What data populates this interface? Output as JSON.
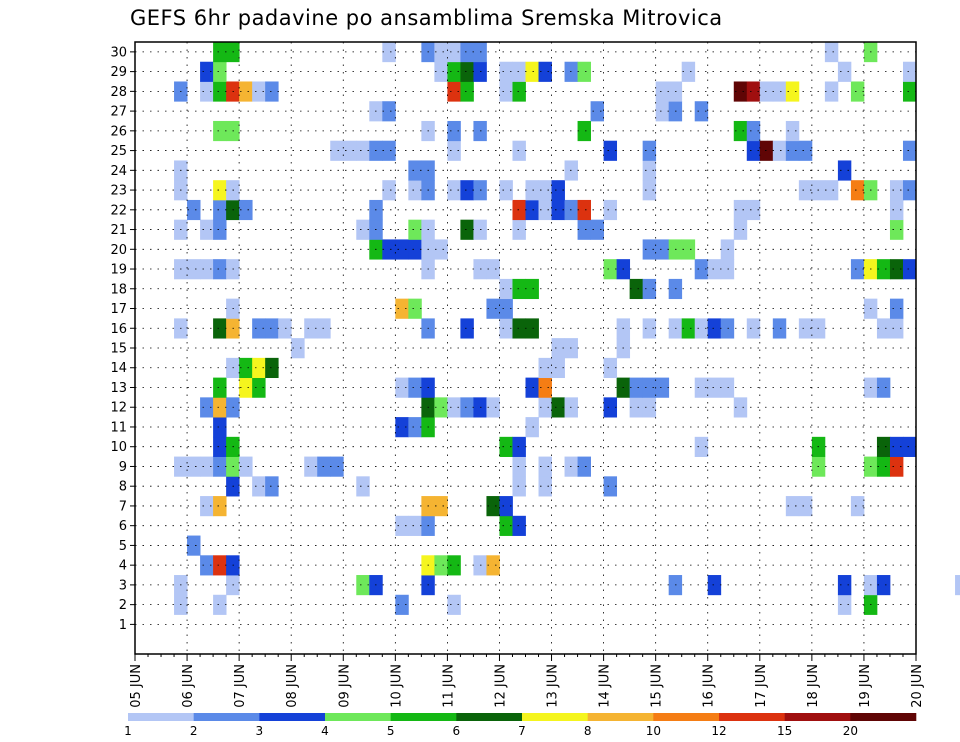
{
  "chart_data": {
    "type": "heatmap",
    "title": "GEFS 6hr padavine po ansamblima Sremska Mitrovica",
    "x_tick_labels": [
      "05 JUN",
      "06 JUN",
      "07 JUN",
      "08 JUN",
      "09 JUN",
      "10 JUN",
      "11 JUN",
      "12 JUN",
      "13 JUN",
      "14 JUN",
      "15 JUN",
      "16 JUN",
      "17 JUN",
      "18 JUN",
      "19 JUN",
      "20 JUN"
    ],
    "y_tick_labels": [
      "1",
      "2",
      "3",
      "4",
      "5",
      "6",
      "7",
      "8",
      "9",
      "10",
      "11",
      "12",
      "13",
      "14",
      "15",
      "16",
      "17",
      "18",
      "19",
      "20",
      "21",
      "22",
      "23",
      "24",
      "25",
      "26",
      "27",
      "28",
      "29",
      "30"
    ],
    "xlim_days": [
      0,
      15
    ],
    "steps_per_day": 4,
    "ensemble_members": 30,
    "grid": true,
    "colorbar": {
      "labels": [
        "1",
        "2",
        "3",
        "4",
        "5",
        "6",
        "7",
        "8",
        "10",
        "12",
        "15",
        "20"
      ],
      "colors": [
        "#b3c6f5",
        "#5b8ae8",
        "#1441d8",
        "#6ee85a",
        "#14b814",
        "#0a640a",
        "#f5f51e",
        "#f5b432",
        "#f57d14",
        "#dc320f",
        "#a00f0f",
        "#600505"
      ]
    },
    "cells": [
      [
        0,
        20.25,
        1
      ],
      [
        0,
        21.0,
        3
      ],
      [
        1,
        19.5,
        1
      ],
      [
        1,
        21.25,
        1
      ],
      [
        1,
        27.25,
        1
      ],
      [
        1,
        28.0,
        1
      ],
      [
        1,
        28.25,
        1
      ],
      [
        1,
        29.25,
        1
      ],
      [
        1,
        29.5,
        4
      ],
      [
        1,
        30.0,
        1
      ],
      [
        2,
        1.0,
        1
      ],
      [
        2,
        1.75,
        1
      ],
      [
        2,
        5.25,
        2
      ],
      [
        2,
        6.25,
        1
      ],
      [
        2,
        13.75,
        1
      ],
      [
        2,
        14.25,
        5
      ],
      [
        2,
        19.25,
        6
      ],
      [
        2,
        30.0,
        5
      ],
      [
        3,
        1.0,
        1
      ],
      [
        3,
        2.0,
        1
      ],
      [
        3,
        4.5,
        4
      ],
      [
        3,
        4.75,
        3
      ],
      [
        3,
        5.75,
        3
      ],
      [
        3,
        10.5,
        2
      ],
      [
        3,
        11.25,
        3
      ],
      [
        3,
        13.75,
        3
      ],
      [
        3,
        14.25,
        1
      ],
      [
        3,
        14.5,
        3
      ],
      [
        3,
        16.0,
        1
      ],
      [
        3,
        16.25,
        1
      ],
      [
        3,
        16.75,
        1
      ],
      [
        3,
        17.0,
        9
      ],
      [
        3,
        17.25,
        5
      ],
      [
        3,
        17.5,
        9
      ],
      [
        3,
        18.5,
        1
      ],
      [
        4,
        1.5,
        2
      ],
      [
        4,
        1.75,
        10
      ],
      [
        4,
        2.0,
        3
      ],
      [
        4,
        5.75,
        7
      ],
      [
        4,
        6.0,
        4
      ],
      [
        4,
        6.25,
        5
      ],
      [
        4,
        6.75,
        1
      ],
      [
        4,
        7.0,
        8
      ],
      [
        4,
        16.75,
        1
      ],
      [
        4,
        17.0,
        1
      ],
      [
        5,
        1.25,
        2
      ],
      [
        6,
        5.25,
        1
      ],
      [
        6,
        5.5,
        1
      ],
      [
        6,
        5.75,
        2
      ],
      [
        6,
        7.25,
        5
      ],
      [
        6,
        7.5,
        3
      ],
      [
        7,
        1.5,
        1
      ],
      [
        7,
        1.75,
        8
      ],
      [
        7,
        5.75,
        8
      ],
      [
        7,
        6.0,
        8
      ],
      [
        7,
        7.0,
        6
      ],
      [
        7,
        7.25,
        3
      ],
      [
        7,
        12.75,
        1
      ],
      [
        7,
        13.0,
        1
      ],
      [
        7,
        14.0,
        1
      ],
      [
        8,
        2.0,
        3
      ],
      [
        8,
        2.5,
        1
      ],
      [
        8,
        2.75,
        2
      ],
      [
        8,
        4.5,
        1
      ],
      [
        8,
        7.5,
        1
      ],
      [
        8,
        8.0,
        1
      ],
      [
        8,
        9.25,
        2
      ],
      [
        9,
        1.0,
        1
      ],
      [
        9,
        1.25,
        1
      ],
      [
        9,
        1.5,
        1
      ],
      [
        9,
        1.75,
        2
      ],
      [
        9,
        2.0,
        4
      ],
      [
        9,
        2.25,
        1
      ],
      [
        9,
        3.5,
        1
      ],
      [
        9,
        3.75,
        2
      ],
      [
        9,
        4.0,
        2
      ],
      [
        9,
        7.5,
        1
      ],
      [
        9,
        8.0,
        1
      ],
      [
        9,
        8.5,
        1
      ],
      [
        9,
        8.75,
        2
      ],
      [
        9,
        13.25,
        4
      ],
      [
        9,
        14.25,
        4
      ],
      [
        9,
        14.5,
        5
      ],
      [
        9,
        14.75,
        10
      ],
      [
        10,
        1.75,
        3
      ],
      [
        10,
        2.0,
        5
      ],
      [
        10,
        7.25,
        5
      ],
      [
        10,
        7.5,
        3
      ],
      [
        10,
        11.0,
        1
      ],
      [
        10,
        13.25,
        5
      ],
      [
        10,
        14.5,
        6
      ],
      [
        10,
        14.75,
        3
      ],
      [
        10,
        15.0,
        3
      ],
      [
        11,
        1.75,
        3
      ],
      [
        11,
        5.25,
        3
      ],
      [
        11,
        5.5,
        2
      ],
      [
        11,
        5.75,
        5
      ],
      [
        11,
        7.75,
        1
      ],
      [
        12,
        1.5,
        2
      ],
      [
        12,
        1.75,
        8
      ],
      [
        12,
        2.0,
        2
      ],
      [
        12,
        5.75,
        6
      ],
      [
        12,
        6.0,
        4
      ],
      [
        12,
        6.25,
        1
      ],
      [
        12,
        6.5,
        2
      ],
      [
        12,
        6.75,
        3
      ],
      [
        12,
        7.0,
        1
      ],
      [
        12,
        8.0,
        1
      ],
      [
        12,
        8.25,
        6
      ],
      [
        12,
        8.5,
        1
      ],
      [
        12,
        9.25,
        3
      ],
      [
        12,
        9.75,
        1
      ],
      [
        12,
        10.0,
        1
      ],
      [
        12,
        11.75,
        1
      ],
      [
        13,
        1.75,
        5
      ],
      [
        13,
        2.25,
        7
      ],
      [
        13,
        2.5,
        5
      ],
      [
        13,
        5.25,
        1
      ],
      [
        13,
        5.5,
        2
      ],
      [
        13,
        5.75,
        3
      ],
      [
        13,
        7.75,
        3
      ],
      [
        13,
        8.0,
        9
      ],
      [
        13,
        9.5,
        6
      ],
      [
        13,
        9.75,
        2
      ],
      [
        13,
        10.0,
        2
      ],
      [
        13,
        10.25,
        2
      ],
      [
        13,
        11.0,
        1
      ],
      [
        13,
        11.25,
        1
      ],
      [
        13,
        11.5,
        1
      ],
      [
        13,
        14.25,
        1
      ],
      [
        13,
        14.5,
        2
      ],
      [
        14,
        2.0,
        1
      ],
      [
        14,
        2.25,
        5
      ],
      [
        14,
        2.5,
        7
      ],
      [
        14,
        2.75,
        6
      ],
      [
        14,
        8.0,
        1
      ],
      [
        14,
        8.25,
        1
      ],
      [
        14,
        9.25,
        1
      ],
      [
        15,
        3.25,
        1
      ],
      [
        15,
        8.25,
        1
      ],
      [
        15,
        8.5,
        1
      ],
      [
        15,
        9.5,
        1
      ],
      [
        16,
        1.0,
        1
      ],
      [
        16,
        1.75,
        6
      ],
      [
        16,
        2.0,
        8
      ],
      [
        16,
        2.5,
        2
      ],
      [
        16,
        2.75,
        2
      ],
      [
        16,
        3.0,
        1
      ],
      [
        16,
        3.5,
        1
      ],
      [
        16,
        3.75,
        1
      ],
      [
        16,
        5.75,
        2
      ],
      [
        16,
        6.5,
        3
      ],
      [
        16,
        7.25,
        1
      ],
      [
        16,
        7.5,
        6
      ],
      [
        16,
        7.75,
        6
      ],
      [
        16,
        9.5,
        1
      ],
      [
        16,
        10.0,
        1
      ],
      [
        16,
        10.5,
        1
      ],
      [
        16,
        10.75,
        5
      ],
      [
        16,
        11.0,
        1
      ],
      [
        16,
        11.25,
        3
      ],
      [
        16,
        11.5,
        2
      ],
      [
        16,
        12.0,
        1
      ],
      [
        16,
        12.5,
        2
      ],
      [
        16,
        13.0,
        1
      ],
      [
        16,
        13.25,
        1
      ],
      [
        16,
        14.5,
        1
      ],
      [
        16,
        14.75,
        1
      ],
      [
        17,
        2.0,
        1
      ],
      [
        17,
        5.25,
        8
      ],
      [
        17,
        5.5,
        4
      ],
      [
        17,
        7.0,
        2
      ],
      [
        17,
        7.25,
        2
      ],
      [
        17,
        14.25,
        1
      ],
      [
        17,
        14.75,
        2
      ],
      [
        18,
        7.25,
        1
      ],
      [
        18,
        7.5,
        5
      ],
      [
        18,
        7.75,
        5
      ],
      [
        18,
        9.75,
        6
      ],
      [
        18,
        10.0,
        2
      ],
      [
        18,
        10.5,
        2
      ],
      [
        19,
        1.0,
        1
      ],
      [
        19,
        1.25,
        1
      ],
      [
        19,
        1.5,
        1
      ],
      [
        19,
        1.75,
        2
      ],
      [
        19,
        2.0,
        1
      ],
      [
        19,
        5.75,
        1
      ],
      [
        19,
        6.75,
        1
      ],
      [
        19,
        7.0,
        1
      ],
      [
        19,
        9.25,
        4
      ],
      [
        19,
        9.5,
        3
      ],
      [
        19,
        11.0,
        2
      ],
      [
        19,
        11.25,
        1
      ],
      [
        19,
        11.5,
        1
      ],
      [
        19,
        14.0,
        2
      ],
      [
        19,
        14.25,
        7
      ],
      [
        19,
        14.5,
        5
      ],
      [
        19,
        14.75,
        6
      ],
      [
        19,
        15.0,
        3
      ],
      [
        20,
        4.75,
        5
      ],
      [
        20,
        5.0,
        3
      ],
      [
        20,
        5.25,
        3
      ],
      [
        20,
        5.5,
        3
      ],
      [
        20,
        5.75,
        1
      ],
      [
        20,
        6.0,
        1
      ],
      [
        20,
        10.0,
        2
      ],
      [
        20,
        10.25,
        2
      ],
      [
        20,
        10.5,
        4
      ],
      [
        20,
        10.75,
        4
      ],
      [
        20,
        11.5,
        1
      ],
      [
        21,
        1.0,
        1
      ],
      [
        21,
        1.5,
        1
      ],
      [
        21,
        1.75,
        2
      ],
      [
        21,
        4.5,
        1
      ],
      [
        21,
        4.75,
        2
      ],
      [
        21,
        5.5,
        4
      ],
      [
        21,
        5.75,
        1
      ],
      [
        21,
        6.5,
        6
      ],
      [
        21,
        6.75,
        1
      ],
      [
        21,
        7.5,
        1
      ],
      [
        21,
        8.75,
        2
      ],
      [
        21,
        9.0,
        2
      ],
      [
        21,
        11.75,
        1
      ],
      [
        21,
        14.75,
        4
      ],
      [
        22,
        1.25,
        2
      ],
      [
        22,
        1.75,
        2
      ],
      [
        22,
        2.0,
        6
      ],
      [
        22,
        2.25,
        2
      ],
      [
        22,
        4.75,
        2
      ],
      [
        22,
        7.5,
        10
      ],
      [
        22,
        7.75,
        3
      ],
      [
        22,
        8.0,
        1
      ],
      [
        22,
        8.25,
        3
      ],
      [
        22,
        8.5,
        2
      ],
      [
        22,
        8.75,
        10
      ],
      [
        22,
        9.25,
        1
      ],
      [
        22,
        11.75,
        1
      ],
      [
        22,
        12.0,
        1
      ],
      [
        22,
        14.75,
        1
      ],
      [
        23,
        1.0,
        1
      ],
      [
        23,
        1.75,
        7
      ],
      [
        23,
        2.0,
        1
      ],
      [
        23,
        5.0,
        1
      ],
      [
        23,
        5.5,
        1
      ],
      [
        23,
        5.75,
        2
      ],
      [
        23,
        6.25,
        1
      ],
      [
        23,
        6.5,
        3
      ],
      [
        23,
        6.75,
        2
      ],
      [
        23,
        7.25,
        1
      ],
      [
        23,
        7.75,
        1
      ],
      [
        23,
        8.0,
        1
      ],
      [
        23,
        8.25,
        3
      ],
      [
        23,
        10.0,
        1
      ],
      [
        23,
        13.0,
        1
      ],
      [
        23,
        13.25,
        1
      ],
      [
        23,
        13.5,
        1
      ],
      [
        23,
        14.0,
        9
      ],
      [
        23,
        14.25,
        4
      ],
      [
        23,
        14.75,
        1
      ],
      [
        23,
        15.0,
        2
      ],
      [
        24,
        1.0,
        1
      ],
      [
        24,
        5.5,
        2
      ],
      [
        24,
        5.75,
        2
      ],
      [
        24,
        8.5,
        1
      ],
      [
        24,
        10.0,
        1
      ],
      [
        24,
        13.75,
        3
      ],
      [
        25,
        4.0,
        1
      ],
      [
        25,
        4.25,
        1
      ],
      [
        25,
        4.5,
        1
      ],
      [
        25,
        4.75,
        2
      ],
      [
        25,
        5.0,
        2
      ],
      [
        25,
        6.25,
        1
      ],
      [
        25,
        7.5,
        1
      ],
      [
        25,
        9.25,
        3
      ],
      [
        25,
        10.0,
        2
      ],
      [
        25,
        12.0,
        3
      ],
      [
        25,
        12.25,
        12
      ],
      [
        25,
        12.5,
        1
      ],
      [
        25,
        12.75,
        2
      ],
      [
        25,
        13.0,
        2
      ],
      [
        25,
        15.0,
        2
      ],
      [
        26,
        1.75,
        4
      ],
      [
        26,
        2.0,
        4
      ],
      [
        26,
        5.75,
        1
      ],
      [
        26,
        6.25,
        2
      ],
      [
        26,
        6.75,
        2
      ],
      [
        26,
        8.75,
        5
      ],
      [
        26,
        11.75,
        5
      ],
      [
        26,
        12.0,
        2
      ],
      [
        26,
        12.75,
        1
      ],
      [
        27,
        4.75,
        1
      ],
      [
        27,
        5.0,
        2
      ],
      [
        27,
        9.0,
        2
      ],
      [
        27,
        10.25,
        1
      ],
      [
        27,
        10.5,
        2
      ],
      [
        27,
        11.0,
        2
      ],
      [
        28,
        1.0,
        2
      ],
      [
        28,
        1.5,
        1
      ],
      [
        28,
        1.75,
        5
      ],
      [
        28,
        2.0,
        10
      ],
      [
        28,
        2.25,
        8
      ],
      [
        28,
        2.5,
        1
      ],
      [
        28,
        2.75,
        2
      ],
      [
        28,
        6.25,
        10
      ],
      [
        28,
        6.5,
        5
      ],
      [
        28,
        7.25,
        1
      ],
      [
        28,
        7.5,
        5
      ],
      [
        28,
        10.25,
        1
      ],
      [
        28,
        10.5,
        1
      ],
      [
        28,
        11.75,
        12
      ],
      [
        28,
        12.0,
        11
      ],
      [
        28,
        12.25,
        1
      ],
      [
        28,
        12.5,
        1
      ],
      [
        28,
        12.75,
        7
      ],
      [
        28,
        13.5,
        1
      ],
      [
        28,
        14.0,
        4
      ],
      [
        28,
        15.0,
        5
      ],
      [
        29,
        1.5,
        3
      ],
      [
        29,
        1.75,
        4
      ],
      [
        29,
        6.0,
        1
      ],
      [
        29,
        6.25,
        5
      ],
      [
        29,
        6.5,
        6
      ],
      [
        29,
        6.75,
        3
      ],
      [
        29,
        7.25,
        1
      ],
      [
        29,
        7.5,
        1
      ],
      [
        29,
        7.75,
        7
      ],
      [
        29,
        8.0,
        3
      ],
      [
        29,
        8.5,
        2
      ],
      [
        29,
        8.75,
        4
      ],
      [
        29,
        10.75,
        1
      ],
      [
        29,
        13.75,
        1
      ],
      [
        29,
        15.0,
        1
      ],
      [
        30,
        1.75,
        5
      ],
      [
        30,
        2.0,
        5
      ],
      [
        30,
        5.0,
        1
      ],
      [
        30,
        5.75,
        2
      ],
      [
        30,
        6.0,
        1
      ],
      [
        30,
        6.25,
        1
      ],
      [
        30,
        6.5,
        2
      ],
      [
        30,
        6.75,
        2
      ],
      [
        30,
        13.5,
        1
      ],
      [
        30,
        14.25,
        4
      ]
    ]
  }
}
